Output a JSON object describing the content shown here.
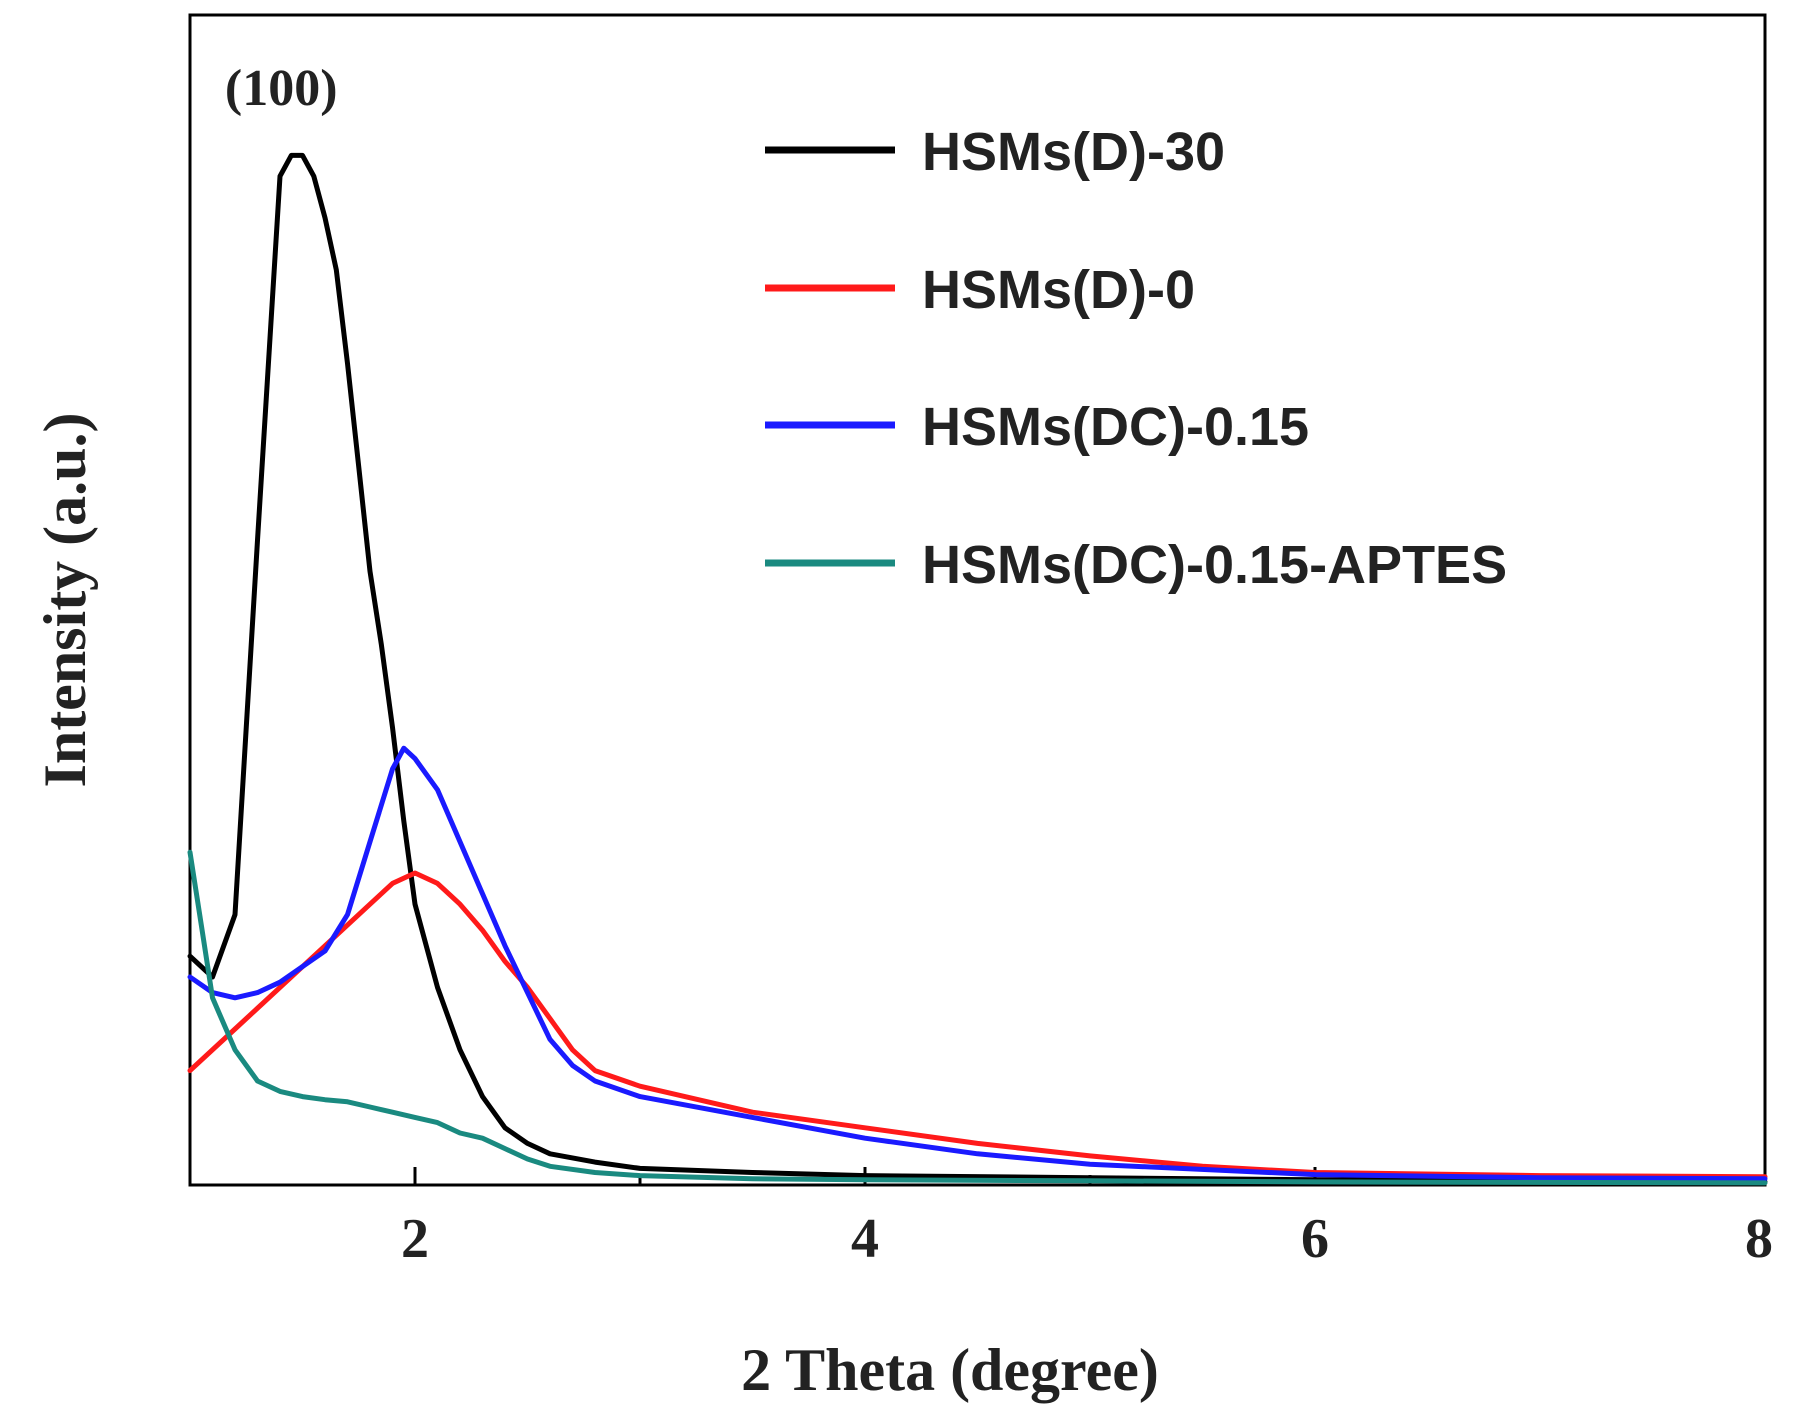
{
  "chart_data": {
    "type": "line",
    "title": "",
    "xlabel": "2 Theta (degree)",
    "ylabel": "Intensity (a.u.)",
    "xlim": [
      1,
      8
    ],
    "ylim": [
      0,
      100
    ],
    "x_ticks": [
      2,
      4,
      6,
      8
    ],
    "x_minor_ticks": [
      1,
      3,
      5,
      7
    ],
    "grid": false,
    "legend_position": "top-right",
    "annotations": [
      {
        "text": "(100)",
        "x": 1.45,
        "y": 100
      }
    ],
    "series": [
      {
        "name": "HSMs(D)-30",
        "color": "#000000",
        "points": [
          [
            1.0,
            22
          ],
          [
            1.1,
            20
          ],
          [
            1.2,
            26
          ],
          [
            1.3,
            62
          ],
          [
            1.4,
            97
          ],
          [
            1.45,
            99
          ],
          [
            1.5,
            99
          ],
          [
            1.55,
            97
          ],
          [
            1.6,
            93
          ],
          [
            1.65,
            88
          ],
          [
            1.7,
            79
          ],
          [
            1.75,
            69
          ],
          [
            1.8,
            59
          ],
          [
            1.85,
            52
          ],
          [
            1.9,
            44
          ],
          [
            1.95,
            35
          ],
          [
            2.0,
            27
          ],
          [
            2.1,
            19
          ],
          [
            2.2,
            13
          ],
          [
            2.3,
            8.5
          ],
          [
            2.4,
            5.5
          ],
          [
            2.5,
            4
          ],
          [
            2.6,
            3
          ],
          [
            2.8,
            2.2
          ],
          [
            3.0,
            1.6
          ],
          [
            3.5,
            1.2
          ],
          [
            4.0,
            0.9
          ],
          [
            5.0,
            0.7
          ],
          [
            6.0,
            0.5
          ],
          [
            8.0,
            0.3
          ]
        ]
      },
      {
        "name": "HSMs(D)-0",
        "color": "#ff1a1a",
        "points": [
          [
            1.0,
            11
          ],
          [
            1.2,
            15
          ],
          [
            1.4,
            19
          ],
          [
            1.6,
            23
          ],
          [
            1.8,
            27
          ],
          [
            1.9,
            29
          ],
          [
            2.0,
            30
          ],
          [
            2.1,
            29
          ],
          [
            2.2,
            27
          ],
          [
            2.3,
            24.5
          ],
          [
            2.4,
            21.5
          ],
          [
            2.5,
            19
          ],
          [
            2.6,
            16
          ],
          [
            2.7,
            13
          ],
          [
            2.8,
            11
          ],
          [
            3.0,
            9.5
          ],
          [
            3.5,
            7
          ],
          [
            4.0,
            5.5
          ],
          [
            4.5,
            4
          ],
          [
            5.0,
            2.8
          ],
          [
            5.5,
            1.8
          ],
          [
            6.0,
            1.2
          ],
          [
            7.0,
            0.9
          ],
          [
            8.0,
            0.8
          ]
        ]
      },
      {
        "name": "HSMs(DC)-0.15",
        "color": "#1a1aff",
        "points": [
          [
            1.0,
            20
          ],
          [
            1.1,
            18.5
          ],
          [
            1.2,
            18
          ],
          [
            1.3,
            18.5
          ],
          [
            1.4,
            19.5
          ],
          [
            1.5,
            21
          ],
          [
            1.6,
            22.5
          ],
          [
            1.7,
            26
          ],
          [
            1.8,
            33
          ],
          [
            1.9,
            40
          ],
          [
            1.95,
            42
          ],
          [
            2.0,
            41
          ],
          [
            2.1,
            38
          ],
          [
            2.2,
            33
          ],
          [
            2.3,
            28
          ],
          [
            2.4,
            23
          ],
          [
            2.5,
            18.5
          ],
          [
            2.6,
            14
          ],
          [
            2.7,
            11.5
          ],
          [
            2.8,
            10
          ],
          [
            3.0,
            8.5
          ],
          [
            3.5,
            6.5
          ],
          [
            4.0,
            4.5
          ],
          [
            4.5,
            3
          ],
          [
            5.0,
            2
          ],
          [
            6.0,
            1
          ],
          [
            7.0,
            0.7
          ],
          [
            8.0,
            0.6
          ]
        ]
      },
      {
        "name": "HSMs(DC)-0.15-APTES",
        "color": "#1a8a80",
        "points": [
          [
            1.0,
            32
          ],
          [
            1.05,
            25
          ],
          [
            1.1,
            18
          ],
          [
            1.2,
            13
          ],
          [
            1.3,
            10
          ],
          [
            1.4,
            9
          ],
          [
            1.5,
            8.5
          ],
          [
            1.6,
            8.2
          ],
          [
            1.7,
            8
          ],
          [
            1.8,
            7.5
          ],
          [
            1.9,
            7
          ],
          [
            2.0,
            6.5
          ],
          [
            2.1,
            6
          ],
          [
            2.2,
            5
          ],
          [
            2.3,
            4.5
          ],
          [
            2.4,
            3.5
          ],
          [
            2.5,
            2.5
          ],
          [
            2.6,
            1.8
          ],
          [
            2.8,
            1.2
          ],
          [
            3.0,
            0.9
          ],
          [
            3.5,
            0.6
          ],
          [
            4.0,
            0.5
          ],
          [
            5.0,
            0.4
          ],
          [
            6.0,
            0.3
          ],
          [
            8.0,
            0.2
          ]
        ]
      }
    ]
  }
}
